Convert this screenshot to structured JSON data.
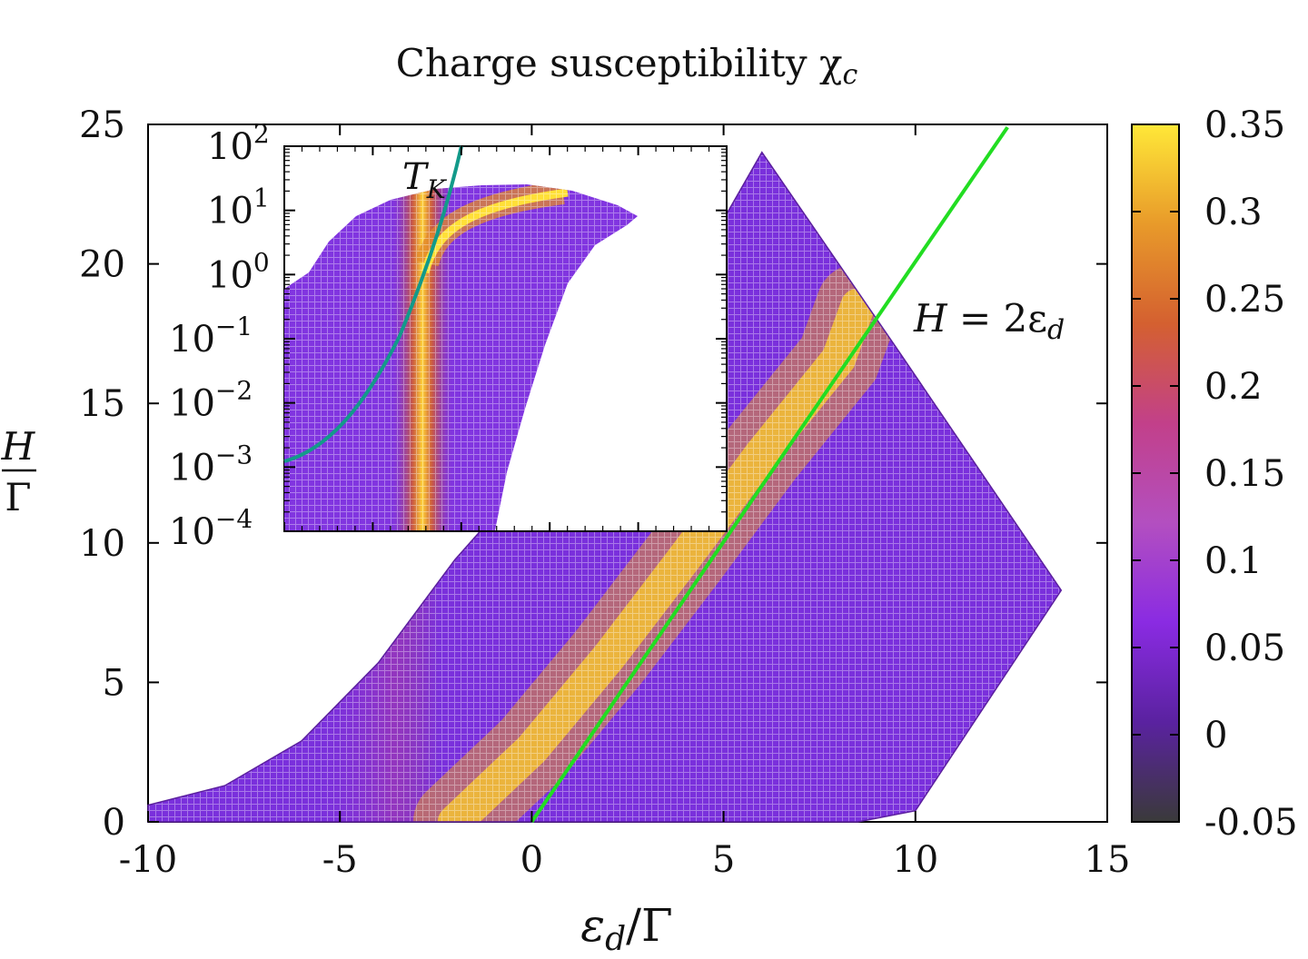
{
  "chart_data": [
    {
      "type": "heatmap",
      "title": "Charge susceptibility",
      "title_symbol": "χ",
      "title_subscript": "c",
      "xlabel": {
        "base": "ε",
        "sub": "d",
        "rest": "/Γ"
      },
      "ylabel": {
        "numerator": "H",
        "denominator": "Γ"
      },
      "xlim": [
        -10,
        15
      ],
      "ylim": [
        0,
        25
      ],
      "x_ticks": [
        -10,
        -5,
        0,
        5,
        10,
        15
      ],
      "y_ticks": [
        0,
        5,
        10,
        15,
        20,
        25
      ],
      "x_tick_labels": [
        "-10",
        "-5",
        "0",
        "5",
        "10",
        "15"
      ],
      "y_tick_labels": [
        "0",
        "5",
        "10",
        "15",
        "20",
        "25"
      ],
      "colorbar": {
        "range": [
          -0.05,
          0.35
        ],
        "ticks": [
          -0.05,
          0,
          0.05,
          0.1,
          0.15,
          0.2,
          0.25,
          0.3,
          0.35
        ],
        "tick_labels": [
          "-0.05",
          "0",
          "0.05",
          "0.1",
          "0.15",
          "0.2",
          "0.25",
          "0.3",
          "0.35"
        ],
        "colormap": [
          "#3a3a3a",
          "#5a22a0",
          "#8a2be2",
          "#b34fc0",
          "#c2408a",
          "#d46030",
          "#e89a2a",
          "#ffe838"
        ]
      },
      "region_boundary": [
        [
          -10,
          0
        ],
        [
          -10,
          0.6
        ],
        [
          -8,
          1.3
        ],
        [
          -6,
          2.9
        ],
        [
          -4,
          5.7
        ],
        [
          -2,
          9.4
        ],
        [
          0,
          12.5
        ],
        [
          2,
          15.5
        ],
        [
          4,
          19.2
        ],
        [
          6,
          24.0
        ],
        [
          9.5,
          17
        ],
        [
          13.8,
          8.3
        ],
        [
          10,
          0.4
        ],
        [
          8.5,
          0
        ]
      ],
      "peak_ridge": [
        [
          -2,
          0
        ],
        [
          0,
          2.6
        ],
        [
          2,
          5.9
        ],
        [
          4,
          9.5
        ],
        [
          6,
          13.2
        ],
        [
          8,
          16.6
        ],
        [
          8.5,
          18.5
        ]
      ],
      "annotation_line": {
        "label_italic": "H",
        "label_rest": " = 2ε",
        "label_sub": "d",
        "points": [
          [
            0,
            0
          ],
          [
            12.4,
            24.9
          ]
        ],
        "color": "#22dd22"
      }
    },
    {
      "type": "heatmap",
      "panel": "inset",
      "y_scale": "log",
      "y_tick_labels": [
        {
          "base": "10",
          "exp": "2"
        },
        {
          "base": "10",
          "exp": "1"
        },
        {
          "base": "10",
          "exp": "0"
        },
        {
          "base": "10",
          "exp": "−1"
        },
        {
          "base": "10",
          "exp": "−2"
        },
        {
          "base": "10",
          "exp": "−3"
        },
        {
          "base": "10",
          "exp": "−4"
        }
      ],
      "curve_label": {
        "base": "T",
        "sub": "K"
      },
      "curve_color": "#139a8a"
    }
  ]
}
